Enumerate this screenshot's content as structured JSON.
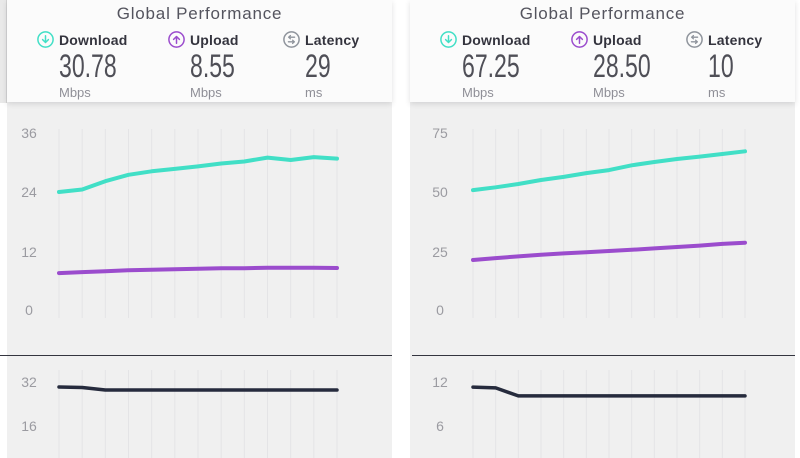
{
  "colors": {
    "download": "#41dfc6",
    "upload": "#9b4ccd",
    "latency_line": "#262b3d",
    "latency_icon": "#8f949c",
    "card_bg": "#fbfbfb",
    "chart_bg": "#f0f0f0",
    "gridline": "#e4e4e6"
  },
  "panels": [
    {
      "title": "Global Performance",
      "metrics": [
        {
          "label": "Download",
          "value": "30.78",
          "unit": "Mbps",
          "icon": "download-icon",
          "color": "#41dfc6"
        },
        {
          "label": "Upload",
          "value": "8.55",
          "unit": "Mbps",
          "icon": "upload-icon",
          "color": "#9b4ccd"
        },
        {
          "label": "Latency",
          "value": "29",
          "unit": "ms",
          "icon": "latency-icon",
          "color": "#8f949c"
        }
      ]
    },
    {
      "title": "Global Performance",
      "metrics": [
        {
          "label": "Download",
          "value": "67.25",
          "unit": "Mbps",
          "icon": "download-icon",
          "color": "#41dfc6"
        },
        {
          "label": "Upload",
          "value": "28.50",
          "unit": "Mbps",
          "icon": "upload-icon",
          "color": "#9b4ccd"
        },
        {
          "label": "Latency",
          "value": "10",
          "unit": "ms",
          "icon": "latency-icon",
          "color": "#8f949c"
        }
      ]
    }
  ],
  "chart_data": [
    {
      "id": "speed-left",
      "type": "line",
      "panel": "left",
      "position": "top",
      "title": "Global Performance speed history (left panel)",
      "x_labels": [],
      "yticks": [
        36,
        24,
        12,
        0
      ],
      "ylim": [
        0,
        36
      ],
      "grid": "vertical-only",
      "legend": "none",
      "series": [
        {
          "name": "Download",
          "unit": "Mbps",
          "color": "#41dfc6",
          "values": [
            24.0,
            24.5,
            26.2,
            27.5,
            28.2,
            28.7,
            29.2,
            29.8,
            30.2,
            31.0,
            30.5,
            31.1,
            30.8
          ]
        },
        {
          "name": "Upload",
          "unit": "Mbps",
          "color": "#9b4ccd",
          "values": [
            7.5,
            7.7,
            7.9,
            8.1,
            8.2,
            8.3,
            8.4,
            8.5,
            8.5,
            8.6,
            8.6,
            8.6,
            8.55
          ]
        }
      ]
    },
    {
      "id": "latency-left",
      "type": "line",
      "panel": "left",
      "position": "bottom",
      "title": "Latency history (left panel)",
      "x_labels": [],
      "yticks": [
        32,
        16
      ],
      "ylim": [
        0,
        32
      ],
      "grid": "vertical-only",
      "legend": "none",
      "series": [
        {
          "name": "Latency",
          "unit": "ms",
          "color": "#262b3d",
          "values": [
            30.2,
            30.0,
            29.1,
            29.1,
            29.1,
            29.1,
            29.1,
            29.1,
            29.1,
            29.1,
            29.1,
            29.1,
            29.1
          ]
        }
      ]
    },
    {
      "id": "speed-right",
      "type": "line",
      "panel": "right",
      "position": "top",
      "title": "Global Performance speed history (right panel)",
      "x_labels": [],
      "yticks": [
        75,
        50,
        25,
        0
      ],
      "ylim": [
        0,
        75
      ],
      "grid": "vertical-only",
      "legend": "none",
      "series": [
        {
          "name": "Download",
          "unit": "Mbps",
          "color": "#41dfc6",
          "values": [
            50.8,
            52.0,
            53.4,
            55.1,
            56.4,
            58.0,
            59.3,
            61.3,
            62.7,
            64.0,
            65.0,
            66.1,
            67.25
          ]
        },
        {
          "name": "Upload",
          "unit": "Mbps",
          "color": "#9b4ccd",
          "values": [
            21.2,
            22.0,
            22.7,
            23.4,
            24.0,
            24.5,
            25.0,
            25.5,
            26.1,
            26.7,
            27.3,
            28.0,
            28.5
          ]
        }
      ]
    },
    {
      "id": "latency-right",
      "type": "line",
      "panel": "right",
      "position": "bottom",
      "title": "Latency history (right panel)",
      "x_labels": [],
      "yticks": [
        12,
        6
      ],
      "ylim": [
        0,
        12
      ],
      "grid": "vertical-only",
      "legend": "none",
      "series": [
        {
          "name": "Latency",
          "unit": "ms",
          "color": "#262b3d",
          "values": [
            11.3,
            11.2,
            10.1,
            10.1,
            10.1,
            10.1,
            10.1,
            10.1,
            10.1,
            10.1,
            10.1,
            10.1,
            10.1
          ]
        }
      ]
    }
  ]
}
